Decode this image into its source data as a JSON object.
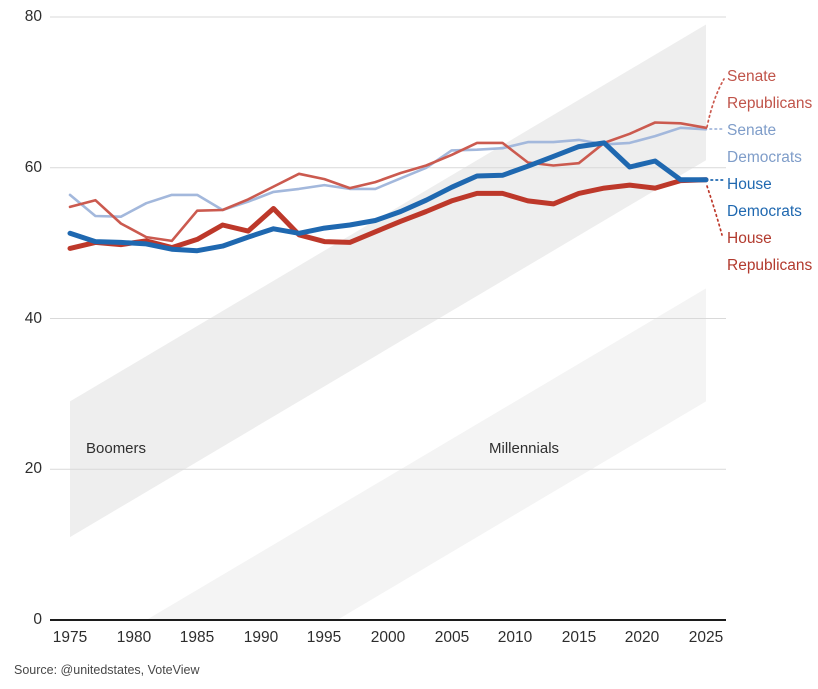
{
  "chart_data": {
    "type": "line",
    "title": "",
    "xlabel": "",
    "ylabel": "",
    "xlim": [
      1975,
      2025
    ],
    "ylim": [
      0,
      80
    ],
    "grid": "horizontal",
    "legend_position": "right",
    "x": [
      1975,
      1977,
      1979,
      1981,
      1983,
      1985,
      1987,
      1989,
      1991,
      1993,
      1995,
      1997,
      1999,
      2001,
      2003,
      2005,
      2007,
      2009,
      2011,
      2013,
      2015,
      2017,
      2019,
      2021,
      2023,
      2025
    ],
    "x_tick_labels": [
      "1975",
      "1980",
      "1985",
      "1990",
      "1995",
      "2000",
      "2005",
      "2010",
      "2015",
      "2020",
      "2025"
    ],
    "x_tick_years": [
      1975,
      1980,
      1985,
      1990,
      1995,
      2000,
      2005,
      2010,
      2015,
      2020,
      2025
    ],
    "y_ticks": [
      0,
      20,
      40,
      60,
      80
    ],
    "y_tick_labels": [
      "0",
      "20",
      "40",
      "60",
      "80"
    ],
    "series": [
      {
        "name": "Senate Republicans",
        "color": "#cb5a4f",
        "label_color": "#c0544a",
        "width": 2.6,
        "z": 2,
        "values": [
          54.8,
          55.7,
          52.6,
          50.8,
          50.3,
          54.3,
          54.4,
          55.8,
          57.5,
          59.2,
          58.5,
          57.3,
          58.1,
          59.3,
          60.3,
          61.7,
          63.3,
          63.3,
          60.7,
          60.3,
          60.6,
          63.3,
          64.5,
          66.0,
          65.9,
          65.3
        ]
      },
      {
        "name": "Senate Democrats",
        "color": "#a3b8dc",
        "label_color": "#7f9dc9",
        "width": 2.6,
        "z": 1,
        "values": [
          56.4,
          53.6,
          53.5,
          55.3,
          56.4,
          56.4,
          54.4,
          55.5,
          56.8,
          57.2,
          57.7,
          57.2,
          57.2,
          58.6,
          60.0,
          62.3,
          62.4,
          62.6,
          63.4,
          63.4,
          63.7,
          63.1,
          63.3,
          64.2,
          65.3,
          65.1
        ]
      },
      {
        "name": "House Democrats",
        "color": "#1f68b0",
        "label_color": "#1f68b0",
        "width": 5,
        "z": 4,
        "values": [
          51.3,
          50.2,
          50.1,
          49.9,
          49.2,
          49.0,
          49.6,
          50.8,
          51.9,
          51.3,
          52.0,
          52.4,
          53.0,
          54.2,
          55.7,
          57.4,
          58.9,
          59.0,
          60.2,
          61.5,
          62.8,
          63.3,
          60.1,
          60.9,
          58.4,
          58.4
        ]
      },
      {
        "name": "House Republicans",
        "color": "#bd382a",
        "label_color": "#b23a2e",
        "width": 5,
        "z": 3,
        "values": [
          49.3,
          50.1,
          49.8,
          50.3,
          49.4,
          50.5,
          52.4,
          51.6,
          54.6,
          51.1,
          50.2,
          50.1,
          51.5,
          52.9,
          54.2,
          55.6,
          56.6,
          56.6,
          55.6,
          55.2,
          56.6,
          57.3,
          57.7,
          57.3,
          58.3,
          58.4
        ]
      }
    ],
    "bands": [
      {
        "label": "Boomers",
        "color": "#eeeeee",
        "polygon_year_age": [
          [
            1975,
            29
          ],
          [
            2025,
            79
          ],
          [
            2025,
            61
          ],
          [
            1975,
            11
          ]
        ]
      },
      {
        "label": "Millennials",
        "color": "#f4f4f4",
        "polygon_year_age": [
          [
            1981,
            0
          ],
          [
            2025,
            44
          ],
          [
            2025,
            29
          ],
          [
            1996,
            0
          ]
        ]
      }
    ]
  },
  "legend": [
    {
      "line1": "Senate",
      "line2": "Republicans"
    },
    {
      "line1": "Senate",
      "line2": "Democrats"
    },
    {
      "line1": "House",
      "line2": "Democrats"
    },
    {
      "line1": "House",
      "line2": "Republicans"
    }
  ],
  "source": "Source: @unitedstates, VoteView"
}
